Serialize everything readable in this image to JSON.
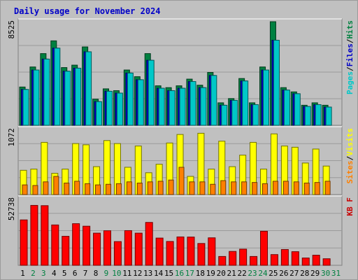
{
  "title": "Daily usage for November 2024",
  "chart_data": [
    {
      "type": "bar",
      "name": "pages-files-hits",
      "y_max_label": "8525",
      "ylim": [
        0,
        8525
      ],
      "legend": [
        "Pages",
        "/",
        "Files",
        "/",
        "Hits"
      ],
      "legend_colors": [
        "#00c8c8",
        "#000000",
        "#0000c8",
        "#000000",
        "#008040"
      ],
      "series": [
        {
          "name": "Hits",
          "color": "#008040",
          "values": [
            3150,
            4800,
            5900,
            6950,
            4750,
            4950,
            6450,
            2150,
            3000,
            2850,
            4550,
            4000,
            5900,
            3250,
            3100,
            3250,
            3800,
            3300,
            4350,
            1850,
            2200,
            3850,
            1850,
            4800,
            8525,
            3100,
            2750,
            1650,
            1850,
            1650
          ]
        },
        {
          "name": "Files",
          "color": "#0000c8",
          "values": [
            2950,
            4550,
            5450,
            6350,
            4450,
            4700,
            6050,
            1950,
            2800,
            2650,
            4300,
            3750,
            5350,
            3050,
            2850,
            3050,
            3600,
            3100,
            4100,
            1650,
            2050,
            3650,
            1700,
            4550,
            7000,
            2900,
            2600,
            1550,
            1700,
            1500
          ]
        },
        {
          "name": "Pages",
          "color": "#00c8c8",
          "values": [
            2950,
            4550,
            5450,
            6350,
            4450,
            4700,
            6050,
            1950,
            2800,
            2650,
            4300,
            3750,
            5350,
            3050,
            2850,
            3050,
            3600,
            3100,
            4100,
            1650,
            2050,
            3650,
            1700,
            4550,
            7000,
            2900,
            2600,
            1550,
            1700,
            1500
          ]
        }
      ]
    },
    {
      "type": "bar",
      "name": "visits-sites",
      "y_max_label": "1072",
      "ylim": [
        0,
        1072
      ],
      "legend": [
        "Sites",
        "/",
        "Visits"
      ],
      "legend_colors": [
        "#ff8000",
        "#000000",
        "#ffff00"
      ],
      "series": [
        {
          "name": "Visits",
          "color": "#ffff00",
          "values": [
            400,
            420,
            860,
            350,
            420,
            840,
            820,
            460,
            890,
            840,
            450,
            800,
            360,
            500,
            850,
            990,
            300,
            1010,
            420,
            880,
            460,
            650,
            860,
            420,
            1000,
            800,
            780,
            520,
            750,
            470
          ]
        },
        {
          "name": "Sites",
          "color": "#ff8000",
          "values": [
            160,
            150,
            210,
            300,
            190,
            220,
            180,
            160,
            170,
            180,
            210,
            190,
            210,
            220,
            240,
            450,
            210,
            210,
            170,
            230,
            210,
            210,
            200,
            180,
            220,
            220,
            210,
            190,
            200,
            220
          ]
        }
      ]
    },
    {
      "type": "bar",
      "name": "kilobytes",
      "y_max_label": "52738",
      "ylim": [
        0,
        52738
      ],
      "legend": [
        "KB F"
      ],
      "legend_colors": [
        "#c80000"
      ],
      "series": [
        {
          "name": "KB F",
          "color": "#ff0000",
          "values": [
            36000,
            47500,
            47300,
            32000,
            23000,
            33000,
            31000,
            25500,
            27400,
            18800,
            27500,
            25500,
            34000,
            21600,
            18900,
            22500,
            22400,
            17300,
            21800,
            7000,
            11000,
            12800,
            7000,
            27000,
            8500,
            12500,
            10800,
            5800,
            8000,
            5200
          ]
        }
      ]
    }
  ],
  "x_categories": [
    "1",
    "2",
    "3",
    "4",
    "5",
    "6",
    "7",
    "8",
    "9",
    "10",
    "11",
    "12",
    "13",
    "14",
    "15",
    "16",
    "17",
    "18",
    "19",
    "20",
    "21",
    "22",
    "23",
    "24",
    "25",
    "26",
    "27",
    "28",
    "29",
    "30",
    "31"
  ],
  "weekend_color": "#008040",
  "weekday_color": "#000000",
  "weekend_days": [
    "2",
    "3",
    "9",
    "10",
    "16",
    "17",
    "23",
    "24",
    "30",
    "31"
  ]
}
